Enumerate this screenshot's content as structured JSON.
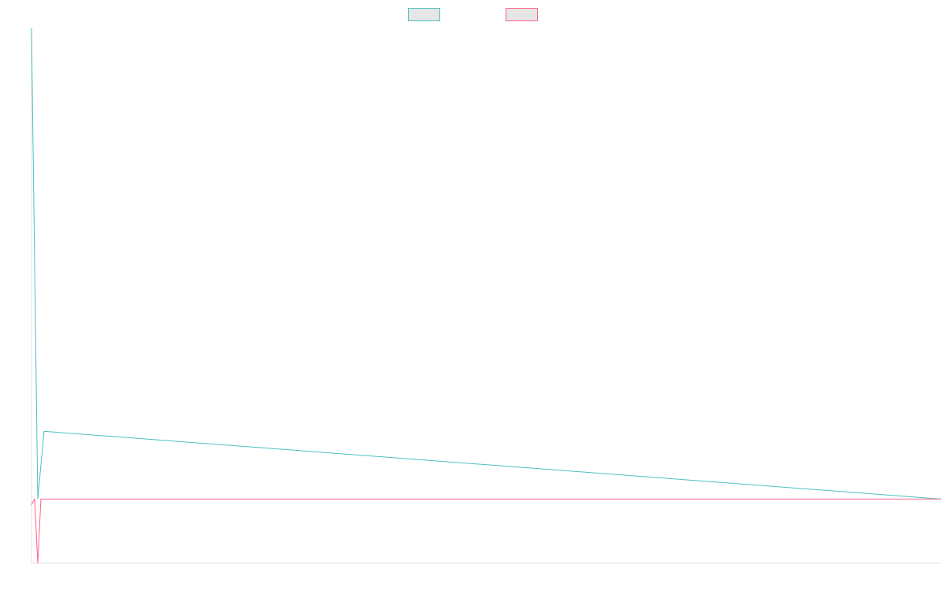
{
  "chart_data": {
    "type": "line",
    "title": "",
    "xlabel": "",
    "ylabel": "",
    "grid": false,
    "legend_position": "top",
    "ylim": [
      -100,
      650
    ],
    "xlim": [
      0,
      145
    ],
    "series": [
      {
        "name": "",
        "color": "#4bc0c0",
        "fill": "#e6e6e6",
        "x": [
          0,
          1,
          2,
          145
        ],
        "y": [
          650,
          -10,
          85,
          -10
        ]
      },
      {
        "name": "",
        "color": "#ff6384",
        "fill": "#e6e6e6",
        "x": [
          0,
          0.5,
          1,
          1.5,
          2,
          145
        ],
        "y": [
          -18,
          -10,
          -100,
          -10,
          -10,
          -10
        ]
      }
    ]
  }
}
